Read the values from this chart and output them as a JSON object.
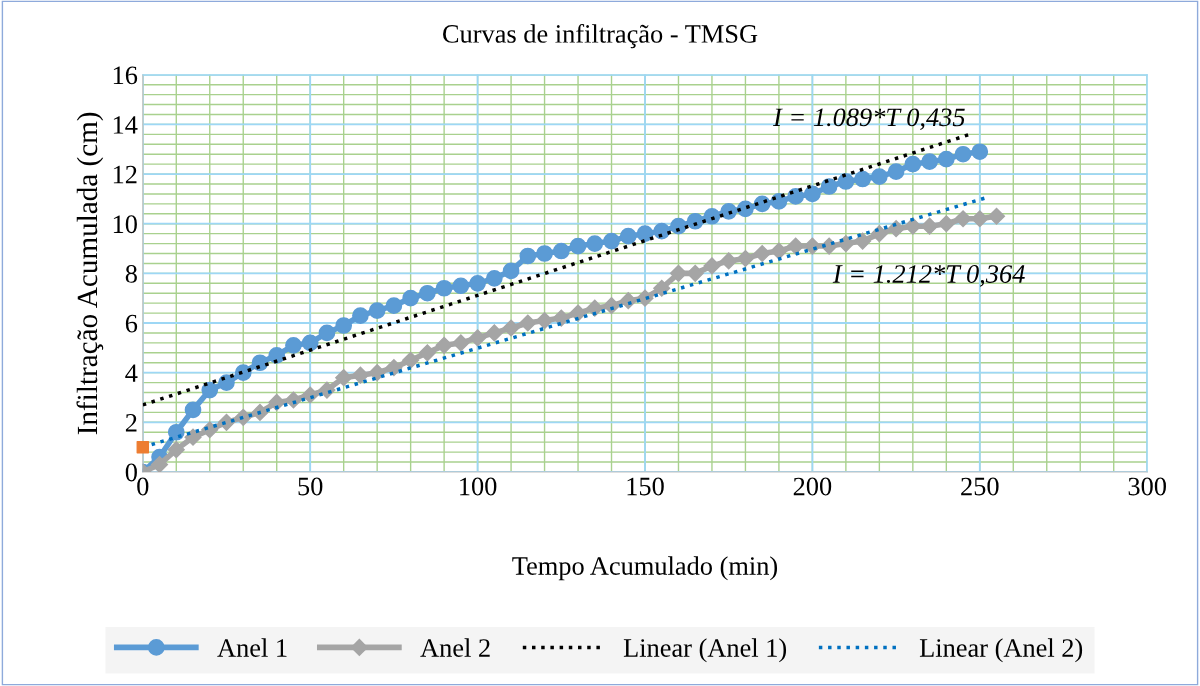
{
  "chart_data": {
    "type": "line",
    "title": "Curvas de infiltração - TMSG",
    "xlabel": "Tempo Acumulado (min)",
    "ylabel": "Infiltração Acumulada (cm)",
    "xlim": [
      0,
      300
    ],
    "xticks": [
      0,
      50,
      100,
      150,
      200,
      250,
      300
    ],
    "ylim": [
      0,
      16
    ],
    "yticks": [
      0,
      2,
      4,
      6,
      8,
      10,
      12,
      14,
      16
    ],
    "grid": true,
    "legend": "bottom",
    "series": [
      {
        "name": "Anel 1",
        "color": "#5b9bd5",
        "marker": "circle",
        "line_style": "solid",
        "x": [
          0,
          5,
          10,
          15,
          20,
          25,
          30,
          35,
          40,
          45,
          50,
          55,
          60,
          65,
          70,
          75,
          80,
          85,
          90,
          95,
          100,
          105,
          110,
          115,
          120,
          125,
          130,
          135,
          140,
          145,
          150,
          155,
          160,
          165,
          170,
          175,
          180,
          185,
          190,
          195,
          200,
          205,
          210,
          215,
          220,
          225,
          230,
          235,
          240,
          245,
          250
        ],
        "values": [
          0,
          0.6,
          1.6,
          2.5,
          3.3,
          3.6,
          4.0,
          4.4,
          4.7,
          5.1,
          5.2,
          5.6,
          5.9,
          6.3,
          6.5,
          6.7,
          7.0,
          7.2,
          7.4,
          7.5,
          7.6,
          7.8,
          8.1,
          8.7,
          8.8,
          8.9,
          9.1,
          9.2,
          9.3,
          9.5,
          9.6,
          9.7,
          9.9,
          10.1,
          10.3,
          10.5,
          10.6,
          10.8,
          10.9,
          11.1,
          11.2,
          11.5,
          11.7,
          11.8,
          11.9,
          12.1,
          12.4,
          12.5,
          12.6,
          12.8,
          12.9
        ]
      },
      {
        "name": "Anel 2",
        "color": "#a5a5a5",
        "marker": "diamond",
        "line_style": "solid",
        "x": [
          0,
          5,
          10,
          15,
          20,
          25,
          30,
          35,
          40,
          45,
          50,
          55,
          60,
          65,
          70,
          75,
          80,
          85,
          90,
          95,
          100,
          105,
          110,
          115,
          120,
          125,
          130,
          135,
          140,
          145,
          150,
          155,
          160,
          165,
          170,
          175,
          180,
          185,
          190,
          195,
          200,
          205,
          210,
          215,
          220,
          225,
          230,
          235,
          240,
          245,
          250,
          255
        ],
        "values": [
          0,
          0.3,
          0.9,
          1.4,
          1.7,
          2.0,
          2.2,
          2.4,
          2.8,
          2.9,
          3.1,
          3.3,
          3.8,
          3.9,
          4.0,
          4.2,
          4.5,
          4.8,
          5.1,
          5.2,
          5.4,
          5.6,
          5.8,
          6.0,
          6.1,
          6.2,
          6.4,
          6.6,
          6.7,
          6.9,
          7.0,
          7.4,
          8.0,
          8.0,
          8.3,
          8.5,
          8.6,
          8.8,
          8.9,
          9.1,
          9.1,
          9.1,
          9.2,
          9.3,
          9.6,
          9.8,
          9.9,
          9.9,
          10.0,
          10.2,
          10.2,
          10.3
        ]
      },
      {
        "type": "scatter",
        "color": "#ed7d31",
        "marker": "square",
        "x": [
          0
        ],
        "values": [
          1
        ]
      },
      {
        "name": "Linear (Anel 1)",
        "color": "#000000",
        "marker": "none",
        "line_style": "dotted",
        "x": [
          0,
          247
        ],
        "values": [
          2.7,
          13.6
        ]
      },
      {
        "name": "Linear (Anel 2)",
        "color": "#0070c0",
        "marker": "none",
        "line_style": "dotted",
        "x": [
          0,
          252
        ],
        "values": [
          1.0,
          11.05
        ]
      }
    ],
    "annotations": [
      {
        "text": "I = 1.089*T 0,435",
        "x": 247,
        "y": 13.6
      },
      {
        "text": "I = 1.212*T 0,364",
        "x": 252,
        "y": 11.05
      }
    ]
  }
}
